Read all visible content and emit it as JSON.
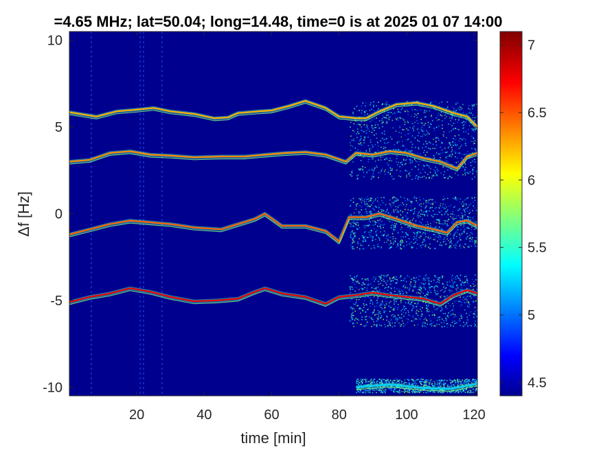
{
  "chart_data": {
    "type": "heatmap",
    "title": "=4.65 MHz;  lat=50.04; long=14.48, time=0 is at 2025 01 07 14:00",
    "xlabel": "time [min]",
    "ylabel": "Δf [Hz]",
    "xlim": [
      0,
      121
    ],
    "ylim": [
      -10.5,
      10.5
    ],
    "x_ticks": [
      20,
      40,
      60,
      80,
      100,
      120
    ],
    "y_ticks": [
      10,
      5,
      0,
      -5,
      -10
    ],
    "x_tick_labels": [
      "20",
      "40",
      "60",
      "80",
      "100",
      "120"
    ],
    "y_tick_labels": [
      "10",
      "5",
      "0",
      "-5",
      "-10"
    ],
    "colorbar": {
      "range": [
        4.4,
        7.1
      ],
      "ticks": [
        4.5,
        5,
        5.5,
        6,
        6.5,
        7
      ],
      "tick_labels": [
        "4.5",
        "5",
        "5.5",
        "6",
        "6.5",
        "7"
      ],
      "colormap": "jet"
    },
    "background_color": "#00008f",
    "vertical_streaks_min": [
      6.5,
      21,
      22,
      27.5
    ],
    "traces": [
      {
        "points": [
          [
            0,
            5.85
          ],
          [
            8,
            5.6
          ],
          [
            14,
            5.9
          ],
          [
            20,
            6.0
          ],
          [
            25,
            6.1
          ],
          [
            30,
            5.9
          ],
          [
            37,
            5.75
          ],
          [
            43,
            5.5
          ],
          [
            47,
            5.55
          ],
          [
            50,
            5.8
          ],
          [
            56,
            5.9
          ],
          [
            60,
            5.95
          ],
          [
            65,
            6.2
          ],
          [
            70,
            6.5
          ],
          [
            76,
            6.1
          ],
          [
            80,
            5.6
          ],
          [
            85,
            5.5
          ],
          [
            88,
            5.5
          ],
          [
            92,
            5.9
          ],
          [
            97,
            6.3
          ],
          [
            103,
            6.4
          ],
          [
            108,
            6.2
          ],
          [
            114,
            5.8
          ],
          [
            118,
            5.6
          ],
          [
            121,
            5.0
          ]
        ],
        "intensity": 6.3
      },
      {
        "points": [
          [
            0,
            3.0
          ],
          [
            6,
            3.1
          ],
          [
            12,
            3.5
          ],
          [
            18,
            3.6
          ],
          [
            24,
            3.4
          ],
          [
            30,
            3.35
          ],
          [
            37,
            3.25
          ],
          [
            45,
            3.3
          ],
          [
            52,
            3.3
          ],
          [
            58,
            3.4
          ],
          [
            64,
            3.5
          ],
          [
            70,
            3.55
          ],
          [
            76,
            3.4
          ],
          [
            82,
            3.0
          ],
          [
            85,
            3.5
          ],
          [
            90,
            3.4
          ],
          [
            95,
            3.6
          ],
          [
            100,
            3.5
          ],
          [
            105,
            3.2
          ],
          [
            110,
            3.0
          ],
          [
            115,
            2.6
          ],
          [
            118,
            3.3
          ],
          [
            121,
            3.5
          ]
        ],
        "intensity": 6.4
      },
      {
        "points": [
          [
            0,
            -1.2
          ],
          [
            6,
            -0.9
          ],
          [
            12,
            -0.6
          ],
          [
            18,
            -0.4
          ],
          [
            24,
            -0.5
          ],
          [
            30,
            -0.6
          ],
          [
            37,
            -0.8
          ],
          [
            45,
            -0.9
          ],
          [
            50,
            -0.6
          ],
          [
            55,
            -0.3
          ],
          [
            58,
            0.0
          ],
          [
            63,
            -0.7
          ],
          [
            70,
            -0.7
          ],
          [
            76,
            -1.0
          ],
          [
            80,
            -1.6
          ],
          [
            83,
            -0.2
          ],
          [
            88,
            -0.2
          ],
          [
            92,
            0.0
          ],
          [
            97,
            -0.3
          ],
          [
            103,
            -0.7
          ],
          [
            108,
            -0.9
          ],
          [
            112,
            -1.1
          ],
          [
            115,
            -0.5
          ],
          [
            118,
            -0.4
          ],
          [
            121,
            -0.7
          ]
        ],
        "intensity": 6.5
      },
      {
        "points": [
          [
            0,
            -5.1
          ],
          [
            6,
            -4.8
          ],
          [
            12,
            -4.6
          ],
          [
            18,
            -4.3
          ],
          [
            24,
            -4.5
          ],
          [
            30,
            -4.8
          ],
          [
            37,
            -5.05
          ],
          [
            44,
            -5.0
          ],
          [
            50,
            -4.9
          ],
          [
            55,
            -4.5
          ],
          [
            58,
            -4.3
          ],
          [
            63,
            -4.6
          ],
          [
            70,
            -4.8
          ],
          [
            76,
            -5.2
          ],
          [
            80,
            -4.8
          ],
          [
            85,
            -4.7
          ],
          [
            90,
            -4.55
          ],
          [
            95,
            -4.7
          ],
          [
            100,
            -4.8
          ],
          [
            105,
            -4.9
          ],
          [
            110,
            -5.2
          ],
          [
            114,
            -4.7
          ],
          [
            118,
            -4.4
          ],
          [
            121,
            -4.6
          ]
        ],
        "intensity": 6.8
      },
      {
        "points": [
          [
            85,
            -10.0
          ],
          [
            95,
            -9.85
          ],
          [
            105,
            -10.05
          ],
          [
            113,
            -10.1
          ],
          [
            121,
            -9.8
          ]
        ],
        "intensity": 5.3
      }
    ],
    "speckle_regions": [
      {
        "x": [
          83,
          121
        ],
        "y": [
          2.0,
          6.5
        ]
      },
      {
        "x": [
          83,
          121
        ],
        "y": [
          -2.0,
          1.0
        ]
      },
      {
        "x": [
          83,
          121
        ],
        "y": [
          -6.5,
          -3.5
        ]
      },
      {
        "x": [
          85,
          121
        ],
        "y": [
          -10.3,
          -9.5
        ]
      }
    ]
  }
}
